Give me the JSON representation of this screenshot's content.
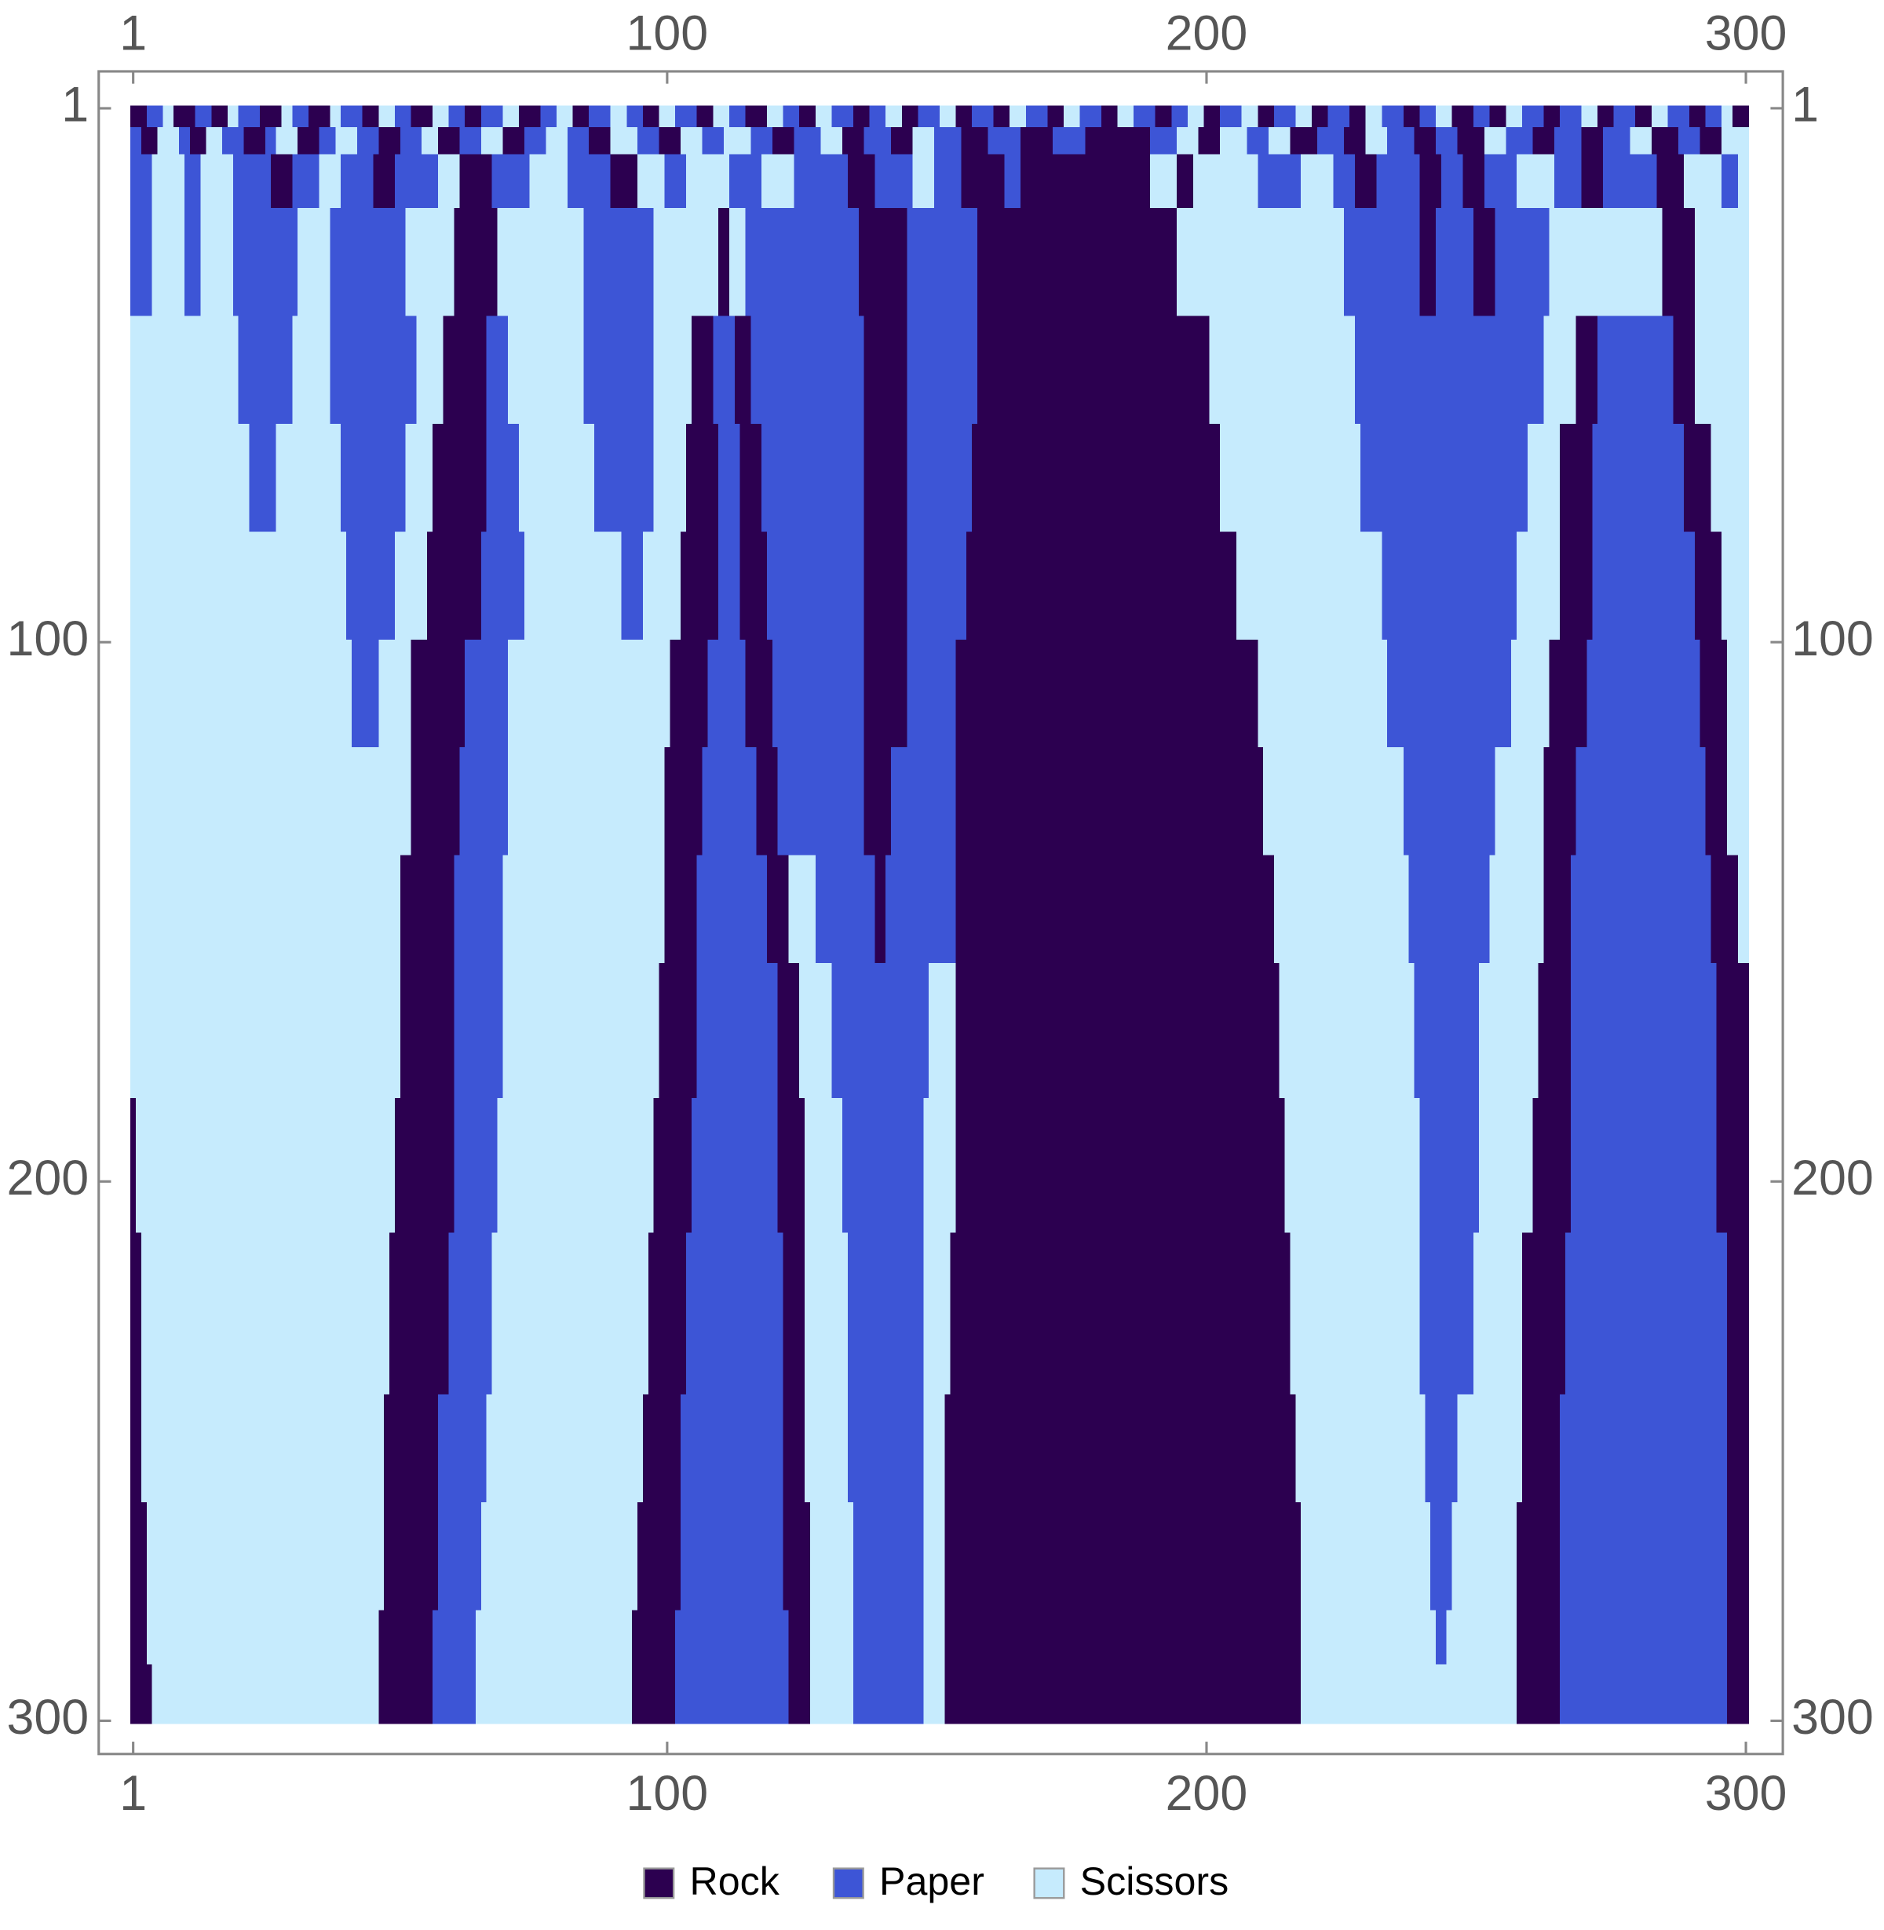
{
  "chart_data": {
    "type": "matrix",
    "series": [
      {
        "name": "Rock",
        "color": "#2c0050"
      },
      {
        "name": "Paper",
        "color": "#3d55d6"
      },
      {
        "name": "Scissors",
        "color": "#c6ebfd"
      }
    ],
    "xlim": [
      0.5,
      300.5
    ],
    "ylim": [
      0.5,
      300.5
    ],
    "xticks": [
      1,
      100,
      200,
      300
    ],
    "yticks": [
      1,
      100,
      200,
      300
    ],
    "rows": [
      {
        "row": 1,
        "breaks": [
          1,
          4,
          7,
          9,
          13,
          16,
          19,
          21,
          25,
          29,
          31,
          34,
          38,
          40,
          44,
          47,
          50,
          53,
          57,
          60,
          63,
          66,
          70,
          73,
          77,
          80,
          83,
          86,
          90,
          93,
          96,
          99,
          102,
          106,
          109,
          112,
          115,
          119,
          122,
          125,
          128,
          131,
          135,
          138,
          141,
          144,
          147,
          151,
          154,
          157,
          161,
          164,
          167,
          171,
          174,
          177,
          181,
          184,
          187,
          191,
          194,
          197,
          200,
          203,
          207,
          210,
          213,
          217,
          220,
          223,
          227,
          230,
          233,
          237,
          240,
          243,
          246,
          250,
          253,
          256,
          259,
          263,
          266,
          270,
          273,
          276,
          280,
          283,
          286,
          290,
          293,
          296,
          298
        ],
        "states": [
          0,
          1,
          2,
          0,
          1,
          0,
          2,
          1,
          0,
          2,
          1,
          0,
          2,
          1,
          0,
          2,
          1,
          0,
          2,
          1,
          0,
          1,
          2,
          0,
          1,
          2,
          0,
          1,
          2,
          1,
          0,
          2,
          1,
          0,
          2,
          1,
          0,
          2,
          1,
          0,
          2,
          1,
          0,
          1,
          2,
          0,
          1,
          2,
          0,
          1,
          0,
          2,
          1,
          0,
          2,
          1,
          0,
          2,
          1,
          0,
          1,
          2,
          0,
          1,
          2,
          0,
          1,
          2,
          0,
          1,
          0,
          2,
          1,
          0,
          1,
          2,
          0,
          1,
          0,
          2,
          1,
          0,
          1,
          2,
          0,
          1,
          0,
          2,
          1,
          0,
          1,
          2,
          0
        ]
      },
      {
        "row": 5,
        "breaks": [
          1,
          3,
          6,
          10,
          12,
          15,
          18,
          22,
          26,
          28,
          32,
          36,
          39,
          43,
          47,
          51,
          55,
          58,
          62,
          66,
          70,
          74,
          78,
          82,
          86,
          90,
          95,
          99,
          103,
          107,
          111,
          116,
          120,
          124,
          129,
          133,
          137,
          142,
          146,
          150,
          155,
          160,
          166,
          172,
          178,
          184,
          190,
          195,
          199,
          203,
          208,
          212,
          216,
          221,
          226,
          230,
          234,
          239,
          243,
          247,
          252,
          256,
          261,
          265,
          270,
          274,
          279,
          283,
          288,
          292,
          296
        ],
        "states": [
          1,
          0,
          2,
          1,
          0,
          2,
          1,
          0,
          1,
          2,
          0,
          1,
          2,
          1,
          0,
          1,
          2,
          0,
          1,
          2,
          0,
          1,
          2,
          1,
          0,
          2,
          1,
          0,
          2,
          1,
          2,
          1,
          0,
          1,
          2,
          0,
          1,
          0,
          2,
          1,
          0,
          1,
          0,
          1,
          0,
          0,
          1,
          2,
          0,
          2,
          1,
          2,
          0,
          1,
          0,
          2,
          1,
          0,
          1,
          0,
          2,
          1,
          0,
          1,
          0,
          1,
          2,
          0,
          1,
          0,
          2
        ]
      },
      {
        "row": 10,
        "breaks": [
          1,
          5,
          11,
          14,
          20,
          27,
          31,
          36,
          40,
          46,
          50,
          58,
          62,
          68,
          75,
          82,
          90,
          95,
          100,
          104,
          112,
          118,
          124,
          134,
          139,
          146,
          150,
          155,
          163,
          166,
          190,
          195,
          198,
          210,
          218,
          224,
          228,
          232,
          240,
          244,
          248,
          252,
          258,
          265,
          270,
          274,
          284,
          289,
          296,
          299
        ],
        "states": [
          1,
          2,
          1,
          2,
          1,
          0,
          1,
          2,
          1,
          0,
          1,
          2,
          0,
          1,
          2,
          1,
          0,
          2,
          1,
          2,
          1,
          2,
          1,
          0,
          1,
          2,
          1,
          0,
          1,
          0,
          2,
          0,
          2,
          1,
          2,
          1,
          0,
          1,
          0,
          1,
          0,
          1,
          2,
          1,
          0,
          1,
          0,
          2,
          1,
          2
        ]
      },
      {
        "row": 20,
        "breaks": [
          1,
          5,
          11,
          14,
          20,
          32,
          38,
          52,
          61,
          69,
          85,
          98,
          110,
          112,
          115,
          136,
          145,
          158,
          195,
          226,
          240,
          243,
          250,
          254,
          264,
          285,
          291
        ],
        "states": [
          1,
          2,
          1,
          2,
          1,
          2,
          1,
          2,
          0,
          2,
          1,
          2,
          0,
          2,
          1,
          0,
          1,
          0,
          2,
          1,
          0,
          1,
          0,
          1,
          2,
          0,
          2
        ]
      },
      {
        "row": 40,
        "breaks": [
          1,
          21,
          31,
          38,
          54,
          59,
          67,
          71,
          85,
          98,
          105,
          109,
          113,
          116,
          137,
          145,
          158,
          201,
          228,
          263,
          269,
          273,
          287,
          291
        ],
        "states": [
          2,
          1,
          2,
          1,
          2,
          0,
          1,
          2,
          1,
          2,
          0,
          1,
          0,
          1,
          0,
          1,
          0,
          2,
          1,
          2,
          0,
          1,
          0,
          2
        ]
      },
      {
        "row": 60,
        "breaks": [
          1,
          23,
          28,
          40,
          52,
          57,
          67,
          73,
          87,
          98,
          104,
          110,
          114,
          118,
          137,
          145,
          157,
          203,
          229,
          260,
          266,
          272,
          289,
          294
        ],
        "states": [
          2,
          1,
          2,
          1,
          2,
          0,
          1,
          2,
          1,
          2,
          0,
          1,
          0,
          1,
          0,
          1,
          0,
          2,
          1,
          2,
          0,
          1,
          0,
          2
        ]
      },
      {
        "row": 80,
        "breaks": [
          1,
          41,
          50,
          56,
          66,
          74,
          92,
          96,
          103,
          110,
          114,
          119,
          137,
          145,
          156,
          206,
          233,
          258,
          266,
          272,
          291,
          296
        ],
        "states": [
          2,
          1,
          2,
          0,
          1,
          2,
          1,
          2,
          0,
          1,
          0,
          1,
          0,
          1,
          0,
          2,
          1,
          2,
          0,
          1,
          0,
          2
        ]
      },
      {
        "row": 100,
        "breaks": [
          1,
          42,
          47,
          53,
          63,
          71,
          101,
          108,
          115,
          120,
          137,
          145,
          154,
          210,
          234,
          257,
          264,
          271,
          292,
          297
        ],
        "states": [
          2,
          1,
          2,
          0,
          1,
          2,
          0,
          1,
          0,
          1,
          0,
          1,
          0,
          2,
          1,
          2,
          0,
          1,
          0,
          2
        ]
      },
      {
        "row": 120,
        "breaks": [
          1,
          53,
          62,
          71,
          100,
          107,
          117,
          121,
          137,
          142,
          154,
          211,
          237,
          254,
          263,
          269,
          293,
          297
        ],
        "states": [
          2,
          0,
          1,
          2,
          0,
          1,
          0,
          1,
          0,
          1,
          0,
          2,
          1,
          2,
          0,
          1,
          0,
          2
        ]
      },
      {
        "row": 140,
        "breaks": [
          1,
          51,
          61,
          70,
          100,
          106,
          119,
          123,
          128,
          139,
          141,
          154,
          213,
          238,
          253,
          263,
          268,
          294,
          299
        ],
        "states": [
          2,
          0,
          1,
          2,
          0,
          1,
          0,
          2,
          1,
          0,
          1,
          0,
          2,
          1,
          2,
          0,
          1,
          0,
          2
        ]
      },
      {
        "row": 160,
        "breaks": [
          1,
          51,
          61,
          70,
          99,
          106,
          121,
          125,
          131,
          149,
          154,
          214,
          239,
          251,
          262,
          268,
          295
        ],
        "states": [
          2,
          0,
          1,
          2,
          0,
          1,
          0,
          2,
          1,
          2,
          0,
          2,
          1,
          2,
          0,
          1,
          0
        ]
      },
      {
        "row": 185,
        "breaks": [
          1,
          2,
          50,
          61,
          69,
          98,
          105,
          121,
          126,
          133,
          148,
          154,
          215,
          240,
          251,
          261,
          268,
          295
        ],
        "states": [
          0,
          2,
          0,
          1,
          2,
          0,
          1,
          0,
          2,
          1,
          2,
          0,
          2,
          1,
          2,
          0,
          1,
          0
        ]
      },
      {
        "row": 210,
        "breaks": [
          1,
          3,
          49,
          60,
          68,
          97,
          104,
          122,
          126,
          134,
          148,
          153,
          216,
          240,
          250,
          259,
          267,
          297
        ],
        "states": [
          0,
          2,
          0,
          1,
          2,
          0,
          1,
          0,
          2,
          1,
          2,
          0,
          2,
          1,
          2,
          0,
          1,
          0
        ]
      },
      {
        "row": 240,
        "breaks": [
          1,
          3,
          48,
          58,
          67,
          96,
          103,
          122,
          126,
          134,
          148,
          152,
          217,
          241,
          247,
          259,
          266,
          297
        ],
        "states": [
          0,
          2,
          0,
          1,
          2,
          0,
          1,
          0,
          2,
          1,
          2,
          0,
          2,
          1,
          2,
          0,
          1,
          0
        ]
      },
      {
        "row": 260,
        "breaks": [
          1,
          4,
          48,
          58,
          66,
          95,
          103,
          122,
          127,
          135,
          148,
          152,
          218,
          242,
          246,
          258,
          266,
          297
        ],
        "states": [
          0,
          2,
          0,
          1,
          2,
          0,
          1,
          0,
          2,
          1,
          2,
          0,
          2,
          1,
          2,
          0,
          1,
          0
        ]
      },
      {
        "row": 280,
        "breaks": [
          1,
          4,
          47,
          57,
          65,
          94,
          102,
          123,
          127,
          135,
          148,
          152,
          218,
          243,
          245,
          258,
          266,
          297
        ],
        "states": [
          0,
          2,
          0,
          1,
          2,
          0,
          1,
          0,
          2,
          1,
          2,
          0,
          2,
          1,
          2,
          0,
          1,
          0
        ]
      },
      {
        "row": 290,
        "breaks": [
          1,
          5,
          47,
          57,
          65,
          94,
          102,
          123,
          127,
          135,
          148,
          152,
          218,
          258,
          266,
          297
        ],
        "states": [
          0,
          2,
          0,
          1,
          2,
          0,
          1,
          0,
          2,
          1,
          2,
          0,
          2,
          0,
          1,
          0
        ]
      }
    ]
  }
}
